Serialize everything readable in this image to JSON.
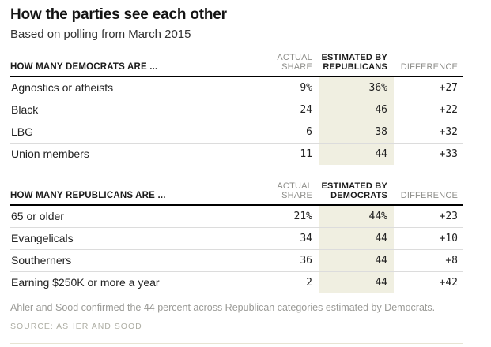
{
  "title": "How the parties see each other",
  "subtitle": "Based on polling from March 2015",
  "tables": [
    {
      "header": "HOW MANY DEMOCRATS ARE ...",
      "col_actual_1": "ACTUAL",
      "col_actual_2": "SHARE",
      "col_est_1": "ESTIMATED BY",
      "col_est_2": "REPUBLICANS",
      "col_diff": "DIFFERENCE",
      "rows": [
        {
          "label": "Agnostics or atheists",
          "actual": "9%",
          "estimated": "36%",
          "difference": "+27"
        },
        {
          "label": "Black",
          "actual": "24",
          "estimated": "46",
          "difference": "+22"
        },
        {
          "label": "LBG",
          "actual": "6",
          "estimated": "38",
          "difference": "+32"
        },
        {
          "label": "Union members",
          "actual": "11",
          "estimated": "44",
          "difference": "+33"
        }
      ]
    },
    {
      "header": "HOW MANY REPUBLICANS ARE ...",
      "col_actual_1": "ACTUAL",
      "col_actual_2": "SHARE",
      "col_est_1": "ESTIMATED BY",
      "col_est_2": "DEMOCRATS",
      "col_diff": "DIFFERENCE",
      "rows": [
        {
          "label": "65 or older",
          "actual": "21%",
          "estimated": "44%",
          "difference": "+23"
        },
        {
          "label": "Evangelicals",
          "actual": "34",
          "estimated": "44",
          "difference": "+10"
        },
        {
          "label": "Southerners",
          "actual": "36",
          "estimated": "44",
          "difference": "+8"
        },
        {
          "label": "Earning $250K or more a year",
          "actual": "2",
          "estimated": "44",
          "difference": "+42"
        }
      ]
    }
  ],
  "footnote": "Ahler and Sood confirmed the 44 percent across Republican categories estimated by Democrats.",
  "source": "SOURCE: ASHER AND SOOD",
  "colors": {
    "highlight_column_bg": "#f0efe1",
    "header_rule": "#000000",
    "row_separator": "#dcdcdc",
    "gray_header_text": "#8e8e8a",
    "dark_text": "#222222",
    "footnote_text": "#9a9a96",
    "source_text": "#aeaea4",
    "bottom_rule": "#e7e4d3"
  },
  "chart_data": [
    {
      "type": "table",
      "title": "HOW MANY DEMOCRATS ARE ...",
      "columns": [
        "ACTUAL SHARE",
        "ESTIMATED BY REPUBLICANS",
        "DIFFERENCE"
      ],
      "rows": [
        {
          "category": "Agnostics or atheists",
          "actual_share": 9,
          "estimated": 36,
          "difference": 27
        },
        {
          "category": "Black",
          "actual_share": 24,
          "estimated": 46,
          "difference": 22
        },
        {
          "category": "LBG",
          "actual_share": 6,
          "estimated": 38,
          "difference": 32
        },
        {
          "category": "Union members",
          "actual_share": 11,
          "estimated": 44,
          "difference": 33
        }
      ]
    },
    {
      "type": "table",
      "title": "HOW MANY REPUBLICANS ARE ...",
      "columns": [
        "ACTUAL SHARE",
        "ESTIMATED BY DEMOCRATS",
        "DIFFERENCE"
      ],
      "rows": [
        {
          "category": "65 or older",
          "actual_share": 21,
          "estimated": 44,
          "difference": 23
        },
        {
          "category": "Evangelicals",
          "actual_share": 34,
          "estimated": 44,
          "difference": 10
        },
        {
          "category": "Southerners",
          "actual_share": 36,
          "estimated": 44,
          "difference": 8
        },
        {
          "category": "Earning $250K or more a year",
          "actual_share": 2,
          "estimated": 44,
          "difference": 42
        }
      ]
    }
  ]
}
